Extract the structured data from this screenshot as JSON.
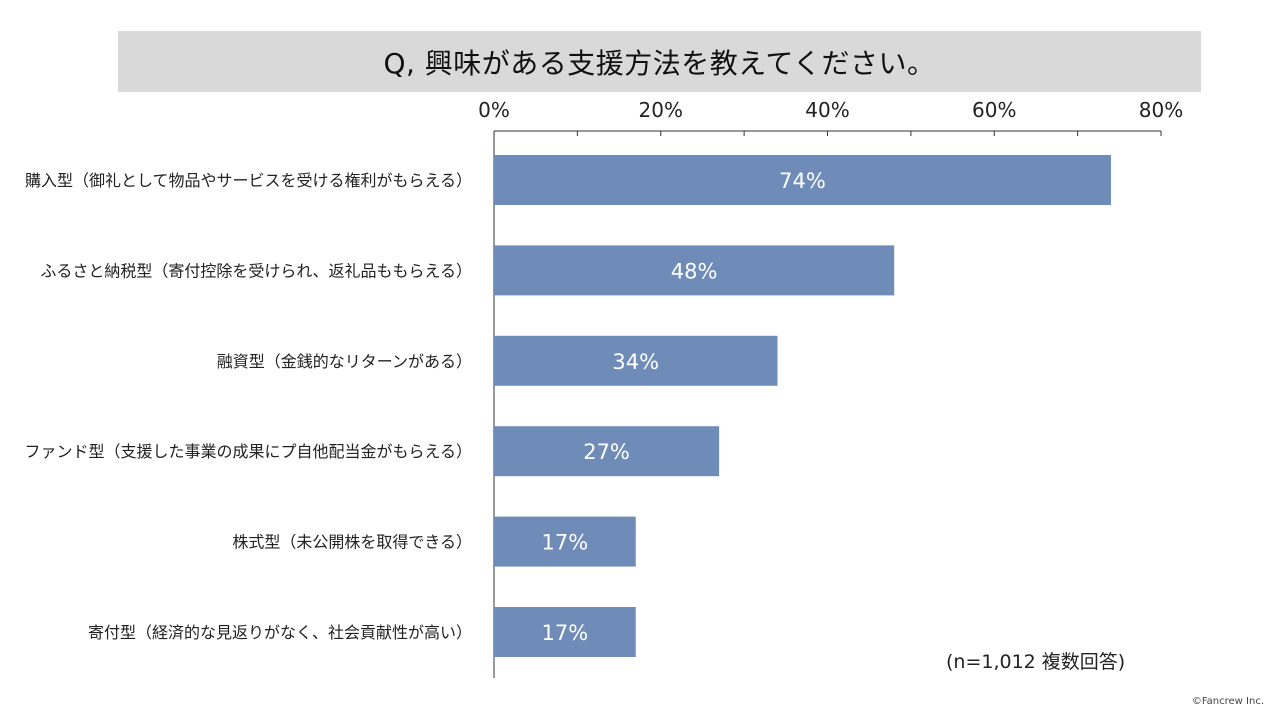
{
  "header": {
    "title": "Q, 興味がある支援方法を教えてください。"
  },
  "note": "(n=1,012 複数回答)",
  "footer": {
    "copyright": "©Fancrew Inc."
  },
  "colors": {
    "bar": "#6f8cb8",
    "bar_label": "#ffffff",
    "axis": "#333333",
    "title_bg": "#d9d9d9"
  },
  "chart_data": {
    "type": "bar",
    "orientation": "horizontal",
    "categories": [
      "購入型（御礼として物品やサービスを受ける権利がもらえる）",
      "ふるさと納税型（寄付控除を受けられ、返礼品ももらえる）",
      "融資型（金銭的なリターンがある）",
      "ファンド型（支援した事業の成果にプ自他配当金がもらえる）",
      "株式型（未公開株を取得できる）",
      "寄付型（経済的な見返りがなく、社会貢献性が高い）"
    ],
    "values": [
      74,
      48,
      34,
      27,
      17,
      17
    ],
    "data_labels": [
      "74%",
      "48%",
      "34%",
      "27%",
      "17%",
      "17%"
    ],
    "x_ticks": [
      "0%",
      "20%",
      "40%",
      "60%",
      "80%"
    ],
    "x_tick_values": [
      0,
      20,
      40,
      60,
      80
    ],
    "xlim": [
      0,
      80
    ],
    "axis_position": "top",
    "grid": false,
    "legend": "none"
  }
}
